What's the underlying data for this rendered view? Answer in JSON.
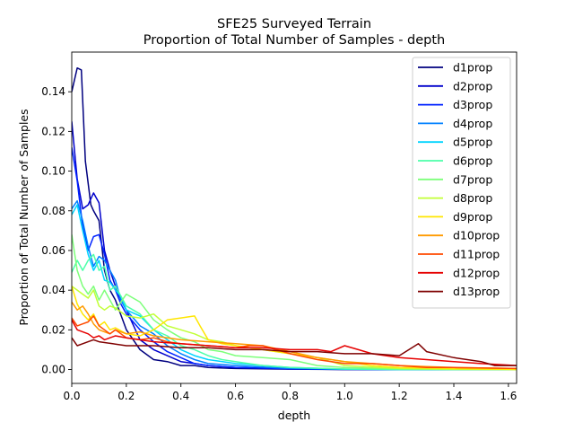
{
  "chart_data": {
    "type": "line",
    "title": "SFE25 Surveyed Terrain",
    "subtitle": "Proportion of Total Number of Samples - depth",
    "xlabel": "depth",
    "ylabel": "Proportion of Total Number of Samples",
    "xlim": [
      0.0,
      1.63
    ],
    "ylim": [
      -0.007,
      0.16
    ],
    "xticks": [
      "0.0",
      "0.2",
      "0.4",
      "0.6",
      "0.8",
      "1.0",
      "1.2",
      "1.4",
      "1.6"
    ],
    "yticks": [
      "0.00",
      "0.02",
      "0.04",
      "0.06",
      "0.08",
      "0.10",
      "0.12",
      "0.14"
    ],
    "grid": false,
    "legend_position": "top-right",
    "series": [
      {
        "name": "d1prop",
        "color": "#00007f",
        "x": [
          0.0,
          0.02,
          0.035,
          0.05,
          0.07,
          0.08,
          0.1,
          0.12,
          0.14,
          0.16,
          0.2,
          0.25,
          0.3,
          0.35,
          0.4,
          0.45,
          0.5,
          0.6,
          0.8,
          1.0,
          1.2,
          1.4,
          1.63
        ],
        "values": [
          0.14,
          0.152,
          0.151,
          0.105,
          0.083,
          0.08,
          0.075,
          0.05,
          0.04,
          0.035,
          0.02,
          0.01,
          0.005,
          0.004,
          0.002,
          0.002,
          0.001,
          0.0005,
          0.0002,
          0.0,
          0.0,
          0.0,
          0.0
        ]
      },
      {
        "name": "d2prop",
        "color": "#0000cc",
        "x": [
          0.0,
          0.02,
          0.04,
          0.06,
          0.08,
          0.1,
          0.12,
          0.14,
          0.16,
          0.18,
          0.2,
          0.25,
          0.3,
          0.35,
          0.4,
          0.45,
          0.5,
          0.6,
          0.8,
          1.0,
          1.2,
          1.4,
          1.63
        ],
        "values": [
          0.125,
          0.096,
          0.081,
          0.083,
          0.089,
          0.084,
          0.06,
          0.05,
          0.042,
          0.035,
          0.03,
          0.015,
          0.01,
          0.007,
          0.004,
          0.003,
          0.002,
          0.001,
          0.0003,
          0.0,
          0.0,
          0.0,
          0.0
        ]
      },
      {
        "name": "d3prop",
        "color": "#0022ff",
        "x": [
          0.0,
          0.02,
          0.04,
          0.06,
          0.08,
          0.1,
          0.12,
          0.14,
          0.16,
          0.18,
          0.2,
          0.25,
          0.3,
          0.35,
          0.4,
          0.45,
          0.5,
          0.6,
          0.8,
          1.0,
          1.2,
          1.4,
          1.63
        ],
        "values": [
          0.112,
          0.095,
          0.072,
          0.06,
          0.067,
          0.068,
          0.058,
          0.045,
          0.04,
          0.033,
          0.028,
          0.02,
          0.014,
          0.009,
          0.006,
          0.003,
          0.002,
          0.001,
          0.0004,
          0.0001,
          0.0,
          0.0,
          0.0
        ]
      },
      {
        "name": "d4prop",
        "color": "#0080ff",
        "x": [
          0.0,
          0.02,
          0.04,
          0.06,
          0.08,
          0.1,
          0.12,
          0.14,
          0.16,
          0.18,
          0.2,
          0.25,
          0.3,
          0.35,
          0.4,
          0.45,
          0.5,
          0.6,
          0.8,
          1.0,
          1.2,
          1.4,
          1.63
        ],
        "values": [
          0.081,
          0.085,
          0.075,
          0.062,
          0.052,
          0.057,
          0.055,
          0.05,
          0.045,
          0.035,
          0.03,
          0.022,
          0.018,
          0.012,
          0.008,
          0.005,
          0.003,
          0.002,
          0.0005,
          0.0001,
          0.0,
          0.0,
          0.0
        ]
      },
      {
        "name": "d5prop",
        "color": "#00d4ff",
        "x": [
          0.0,
          0.02,
          0.04,
          0.06,
          0.08,
          0.1,
          0.12,
          0.14,
          0.16,
          0.18,
          0.2,
          0.25,
          0.3,
          0.35,
          0.4,
          0.45,
          0.5,
          0.6,
          0.8,
          1.0,
          1.2,
          1.4,
          1.63
        ],
        "values": [
          0.078,
          0.083,
          0.07,
          0.058,
          0.05,
          0.055,
          0.045,
          0.044,
          0.04,
          0.037,
          0.03,
          0.027,
          0.02,
          0.015,
          0.01,
          0.007,
          0.005,
          0.003,
          0.001,
          0.0002,
          0.0,
          0.0,
          0.0
        ]
      },
      {
        "name": "d6prop",
        "color": "#4dffaa",
        "x": [
          0.0,
          0.02,
          0.04,
          0.06,
          0.08,
          0.1,
          0.12,
          0.14,
          0.16,
          0.2,
          0.25,
          0.3,
          0.35,
          0.4,
          0.45,
          0.5,
          0.55,
          0.6,
          0.7,
          0.8,
          1.0,
          1.2,
          1.4,
          1.63
        ],
        "values": [
          0.049,
          0.055,
          0.05,
          0.055,
          0.058,
          0.05,
          0.052,
          0.04,
          0.042,
          0.032,
          0.028,
          0.02,
          0.017,
          0.012,
          0.01,
          0.007,
          0.005,
          0.004,
          0.002,
          0.001,
          0.0003,
          0.0,
          0.0,
          0.0
        ]
      },
      {
        "name": "d7prop",
        "color": "#7dff7a",
        "x": [
          0.0,
          0.02,
          0.04,
          0.06,
          0.08,
          0.1,
          0.12,
          0.14,
          0.16,
          0.2,
          0.25,
          0.3,
          0.35,
          0.4,
          0.45,
          0.5,
          0.55,
          0.6,
          0.7,
          0.8,
          0.9,
          1.0,
          1.2,
          1.4,
          1.63
        ],
        "values": [
          0.068,
          0.05,
          0.042,
          0.038,
          0.042,
          0.035,
          0.04,
          0.035,
          0.03,
          0.038,
          0.034,
          0.025,
          0.02,
          0.016,
          0.014,
          0.01,
          0.009,
          0.007,
          0.006,
          0.005,
          0.002,
          0.001,
          0.0003,
          0.0,
          0.0
        ]
      },
      {
        "name": "d8prop",
        "color": "#c1ff36",
        "x": [
          0.0,
          0.02,
          0.04,
          0.06,
          0.08,
          0.1,
          0.12,
          0.14,
          0.16,
          0.2,
          0.25,
          0.3,
          0.35,
          0.4,
          0.45,
          0.5,
          0.55,
          0.6,
          0.7,
          0.8,
          0.9,
          1.0,
          1.2,
          1.4,
          1.63
        ],
        "values": [
          0.042,
          0.04,
          0.038,
          0.036,
          0.04,
          0.032,
          0.03,
          0.032,
          0.031,
          0.027,
          0.026,
          0.028,
          0.022,
          0.02,
          0.018,
          0.015,
          0.014,
          0.012,
          0.01,
          0.008,
          0.006,
          0.002,
          0.0005,
          0.0001,
          0.0
        ]
      },
      {
        "name": "d9prop",
        "color": "#ffe600",
        "x": [
          0.0,
          0.02,
          0.04,
          0.06,
          0.08,
          0.1,
          0.12,
          0.14,
          0.16,
          0.2,
          0.25,
          0.3,
          0.35,
          0.4,
          0.45,
          0.47,
          0.5,
          0.55,
          0.6,
          0.7,
          0.8,
          0.9,
          1.0,
          1.1,
          1.2,
          1.4,
          1.63
        ],
        "values": [
          0.042,
          0.033,
          0.028,
          0.025,
          0.028,
          0.022,
          0.024,
          0.02,
          0.021,
          0.018,
          0.017,
          0.02,
          0.025,
          0.026,
          0.027,
          0.022,
          0.015,
          0.013,
          0.012,
          0.01,
          0.008,
          0.006,
          0.004,
          0.002,
          0.001,
          0.0005,
          0.0
        ]
      },
      {
        "name": "d10prop",
        "color": "#ff9a00",
        "x": [
          0.0,
          0.02,
          0.04,
          0.06,
          0.08,
          0.1,
          0.12,
          0.14,
          0.16,
          0.2,
          0.25,
          0.3,
          0.35,
          0.4,
          0.5,
          0.6,
          0.7,
          0.8,
          0.9,
          1.0,
          1.1,
          1.2,
          1.3,
          1.4,
          1.63
        ],
        "values": [
          0.034,
          0.03,
          0.032,
          0.028,
          0.023,
          0.02,
          0.019,
          0.018,
          0.02,
          0.018,
          0.019,
          0.017,
          0.016,
          0.015,
          0.014,
          0.013,
          0.012,
          0.009,
          0.006,
          0.004,
          0.003,
          0.002,
          0.0015,
          0.001,
          0.0005
        ]
      },
      {
        "name": "d11prop",
        "color": "#ff4a00",
        "x": [
          0.0,
          0.02,
          0.04,
          0.06,
          0.08,
          0.1,
          0.12,
          0.14,
          0.16,
          0.2,
          0.25,
          0.3,
          0.35,
          0.4,
          0.5,
          0.6,
          0.65,
          0.7,
          0.8,
          0.9,
          1.0,
          1.1,
          1.2,
          1.3,
          1.4,
          1.63
        ],
        "values": [
          0.026,
          0.022,
          0.023,
          0.024,
          0.027,
          0.022,
          0.02,
          0.018,
          0.02,
          0.016,
          0.015,
          0.016,
          0.014,
          0.013,
          0.012,
          0.011,
          0.012,
          0.012,
          0.008,
          0.005,
          0.003,
          0.003,
          0.002,
          0.001,
          0.001,
          0.0005
        ]
      },
      {
        "name": "d12prop",
        "color": "#e60000",
        "x": [
          0.0,
          0.02,
          0.04,
          0.06,
          0.08,
          0.1,
          0.12,
          0.14,
          0.16,
          0.2,
          0.25,
          0.3,
          0.4,
          0.5,
          0.6,
          0.7,
          0.8,
          0.9,
          0.95,
          1.0,
          1.05,
          1.1,
          1.2,
          1.3,
          1.4,
          1.5,
          1.63
        ],
        "values": [
          0.025,
          0.02,
          0.019,
          0.018,
          0.016,
          0.017,
          0.015,
          0.016,
          0.017,
          0.016,
          0.015,
          0.014,
          0.013,
          0.012,
          0.011,
          0.011,
          0.01,
          0.01,
          0.009,
          0.012,
          0.01,
          0.008,
          0.006,
          0.005,
          0.004,
          0.003,
          0.002
        ]
      },
      {
        "name": "d13prop",
        "color": "#7f0000",
        "x": [
          0.0,
          0.02,
          0.04,
          0.06,
          0.08,
          0.1,
          0.15,
          0.2,
          0.25,
          0.3,
          0.4,
          0.5,
          0.6,
          0.7,
          0.8,
          0.9,
          1.0,
          1.1,
          1.2,
          1.27,
          1.3,
          1.4,
          1.5,
          1.55,
          1.63
        ],
        "values": [
          0.016,
          0.012,
          0.013,
          0.014,
          0.015,
          0.014,
          0.013,
          0.012,
          0.012,
          0.012,
          0.011,
          0.011,
          0.01,
          0.01,
          0.009,
          0.009,
          0.008,
          0.008,
          0.007,
          0.013,
          0.009,
          0.006,
          0.004,
          0.002,
          0.002
        ]
      }
    ]
  }
}
